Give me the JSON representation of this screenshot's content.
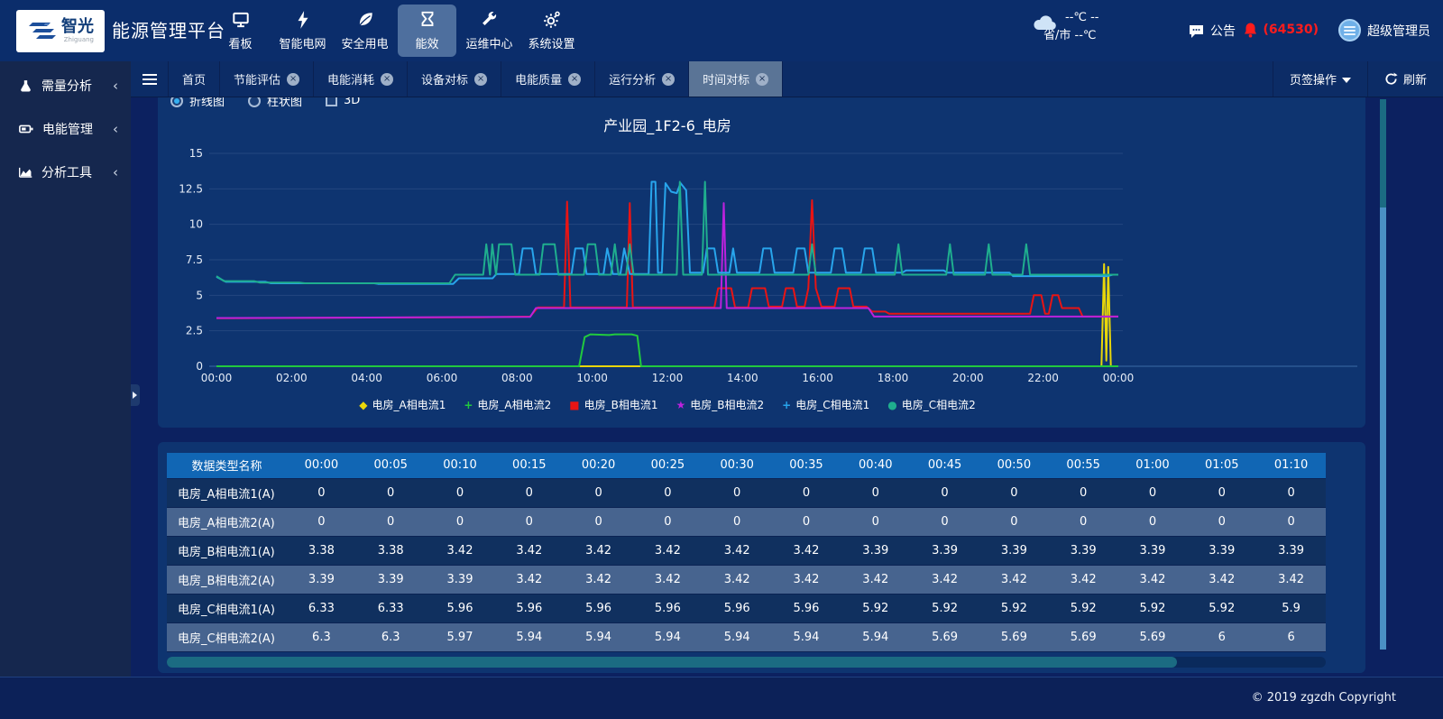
{
  "logo": {
    "brand": "智光",
    "sub": "Zhiguang"
  },
  "header": {
    "title": "能源管理平台",
    "nav": [
      {
        "label": "看板"
      },
      {
        "label": "智能电网"
      },
      {
        "label": "安全用电"
      },
      {
        "label": "能效"
      },
      {
        "label": "运维中心"
      },
      {
        "label": "系统设置"
      }
    ],
    "weather": {
      "line1": "--℃ --",
      "line2": "省/市 --℃"
    },
    "announcement": "公告",
    "alarm_count": "(64530)",
    "user": "超级管理员"
  },
  "sidebar": {
    "items": [
      {
        "label": "需量分析"
      },
      {
        "label": "电能管理"
      },
      {
        "label": "分析工具"
      }
    ]
  },
  "tabbar": {
    "tabs": [
      {
        "label": "首页"
      },
      {
        "label": "节能评估"
      },
      {
        "label": "电能消耗"
      },
      {
        "label": "设备对标"
      },
      {
        "label": "电能质量"
      },
      {
        "label": "运行分析"
      },
      {
        "label": "时间对标"
      }
    ],
    "tab_ops": "页签操作",
    "refresh": "刷新"
  },
  "chart_panel": {
    "controls": {
      "line": "折线图",
      "bar": "柱状图",
      "threed": "3D",
      "selected": "折线图"
    },
    "title": "产业园_1F2-6_电房"
  },
  "chart_data": {
    "type": "line",
    "title": "产业园_1F2-6_电房",
    "ylim": [
      0,
      15
    ],
    "yticks": [
      0,
      2.5,
      5,
      7.5,
      10,
      12.5,
      15
    ],
    "xticks": [
      "00:00",
      "02:00",
      "04:00",
      "06:00",
      "08:00",
      "10:00",
      "12:00",
      "14:00",
      "16:00",
      "18:00",
      "20:00",
      "22:00",
      "00:00"
    ],
    "x_unit": "hour",
    "grid": true,
    "legend_position": "bottom",
    "series": [
      {
        "name": "电房_A相电流1",
        "color": "#e8d60a",
        "marker": "diamond",
        "points": [
          [
            0,
            0
          ],
          [
            23.55,
            0
          ],
          [
            23.62,
            7.2
          ],
          [
            23.68,
            0.4
          ],
          [
            23.73,
            7.0
          ],
          [
            23.8,
            0
          ],
          [
            24,
            0
          ]
        ]
      },
      {
        "name": "电房_A相电流2",
        "color": "#21c93e",
        "marker": "plus",
        "points": [
          [
            0,
            0
          ],
          [
            9.65,
            0
          ],
          [
            9.8,
            2.05
          ],
          [
            9.95,
            2.25
          ],
          [
            10.45,
            2.2
          ],
          [
            10.6,
            2.25
          ],
          [
            11.05,
            2.25
          ],
          [
            11.2,
            2.15
          ],
          [
            11.3,
            0
          ],
          [
            24,
            0
          ]
        ]
      },
      {
        "name": "电房_B相电流1",
        "color": "#e81414",
        "marker": "square",
        "points": [
          [
            0,
            3.38
          ],
          [
            3,
            3.42
          ],
          [
            7,
            3.45
          ],
          [
            8.35,
            3.5
          ],
          [
            8.55,
            4.15
          ],
          [
            9.25,
            4.15
          ],
          [
            9.33,
            11.6
          ],
          [
            9.42,
            4.15
          ],
          [
            10.92,
            4.15
          ],
          [
            11.0,
            11.5
          ],
          [
            11.08,
            4.15
          ],
          [
            13.25,
            4.15
          ],
          [
            13.35,
            5.5
          ],
          [
            13.7,
            5.5
          ],
          [
            13.8,
            4.15
          ],
          [
            14.15,
            4.15
          ],
          [
            14.25,
            5.5
          ],
          [
            14.6,
            5.5
          ],
          [
            14.7,
            4.2
          ],
          [
            15.05,
            4.2
          ],
          [
            15.15,
            5.5
          ],
          [
            15.35,
            5.5
          ],
          [
            15.45,
            4.2
          ],
          [
            15.65,
            4.2
          ],
          [
            15.75,
            5.5
          ],
          [
            15.85,
            11.7
          ],
          [
            15.95,
            5.5
          ],
          [
            16.1,
            4.2
          ],
          [
            16.45,
            4.2
          ],
          [
            16.55,
            5.5
          ],
          [
            16.85,
            5.5
          ],
          [
            16.95,
            4.2
          ],
          [
            17.3,
            4.2
          ],
          [
            17.45,
            3.85
          ],
          [
            17.8,
            3.85
          ],
          [
            17.9,
            3.7
          ],
          [
            21.65,
            3.7
          ],
          [
            21.75,
            5.0
          ],
          [
            21.95,
            5.0
          ],
          [
            22.05,
            3.7
          ],
          [
            22.15,
            3.7
          ],
          [
            22.25,
            5.0
          ],
          [
            22.4,
            5.0
          ],
          [
            22.5,
            4.1
          ],
          [
            22.95,
            4.1
          ],
          [
            23.05,
            3.5
          ],
          [
            24,
            3.5
          ]
        ]
      },
      {
        "name": "电房_B相电流2",
        "color": "#bb22dd",
        "marker": "star",
        "points": [
          [
            0,
            3.4
          ],
          [
            4,
            3.43
          ],
          [
            8.35,
            3.48
          ],
          [
            8.5,
            4.1
          ],
          [
            13.42,
            4.1
          ],
          [
            13.5,
            11.5
          ],
          [
            13.58,
            4.1
          ],
          [
            17.35,
            4.1
          ],
          [
            17.5,
            3.5
          ],
          [
            24,
            3.5
          ]
        ]
      },
      {
        "name": "电房_C相电流1",
        "color": "#28a5ec",
        "marker": "cross",
        "points": [
          [
            0,
            6.3
          ],
          [
            0.25,
            5.95
          ],
          [
            1.3,
            5.95
          ],
          [
            1.45,
            5.85
          ],
          [
            4.2,
            5.85
          ],
          [
            4.3,
            5.8
          ],
          [
            6.3,
            5.8
          ],
          [
            6.45,
            6.2
          ],
          [
            7.35,
            6.2
          ],
          [
            7.45,
            6.5
          ],
          [
            8.05,
            6.5
          ],
          [
            8.15,
            8.3
          ],
          [
            8.4,
            8.3
          ],
          [
            8.5,
            6.5
          ],
          [
            9.45,
            6.5
          ],
          [
            9.55,
            8.3
          ],
          [
            9.75,
            8.3
          ],
          [
            9.85,
            6.5
          ],
          [
            10.3,
            6.5
          ],
          [
            10.4,
            8.3
          ],
          [
            10.55,
            6.5
          ],
          [
            10.75,
            6.5
          ],
          [
            10.85,
            8.3
          ],
          [
            11.0,
            6.5
          ],
          [
            11.5,
            6.5
          ],
          [
            11.58,
            13.0
          ],
          [
            11.68,
            13.0
          ],
          [
            11.75,
            6.6
          ],
          [
            11.85,
            6.6
          ],
          [
            11.95,
            12.9
          ],
          [
            12.1,
            12.3
          ],
          [
            12.25,
            12.2
          ],
          [
            12.35,
            12.9
          ],
          [
            12.5,
            12.4
          ],
          [
            12.6,
            6.6
          ],
          [
            12.95,
            6.6
          ],
          [
            13.05,
            8.3
          ],
          [
            13.25,
            8.3
          ],
          [
            13.35,
            6.6
          ],
          [
            13.65,
            6.6
          ],
          [
            13.75,
            8.3
          ],
          [
            13.85,
            6.6
          ],
          [
            14.45,
            6.6
          ],
          [
            14.55,
            8.3
          ],
          [
            14.75,
            8.3
          ],
          [
            14.85,
            6.6
          ],
          [
            15.35,
            6.6
          ],
          [
            15.45,
            8.3
          ],
          [
            15.65,
            8.3
          ],
          [
            15.75,
            6.6
          ],
          [
            16.35,
            6.6
          ],
          [
            16.45,
            8.3
          ],
          [
            16.65,
            8.3
          ],
          [
            16.75,
            6.6
          ],
          [
            17.15,
            6.6
          ],
          [
            17.25,
            8.3
          ],
          [
            17.45,
            8.3
          ],
          [
            17.55,
            6.6
          ],
          [
            18.25,
            6.6
          ],
          [
            18.35,
            6.75
          ],
          [
            19.35,
            6.75
          ],
          [
            19.45,
            6.6
          ],
          [
            21.1,
            6.6
          ],
          [
            21.2,
            6.35
          ],
          [
            23.7,
            6.35
          ],
          [
            23.85,
            6.45
          ],
          [
            24,
            6.45
          ]
        ]
      },
      {
        "name": "电房_C相电流2",
        "color": "#1fae8e",
        "marker": "circle",
        "points": [
          [
            0,
            6.35
          ],
          [
            0.2,
            6.0
          ],
          [
            1.0,
            6.0
          ],
          [
            1.15,
            5.9
          ],
          [
            2.2,
            5.9
          ],
          [
            2.35,
            5.85
          ],
          [
            6.2,
            5.85
          ],
          [
            6.35,
            6.45
          ],
          [
            7.1,
            6.45
          ],
          [
            7.18,
            8.6
          ],
          [
            7.28,
            6.45
          ],
          [
            7.34,
            8.6
          ],
          [
            7.44,
            6.45
          ],
          [
            7.52,
            8.6
          ],
          [
            7.85,
            8.6
          ],
          [
            7.95,
            6.45
          ],
          [
            8.6,
            6.45
          ],
          [
            8.7,
            8.6
          ],
          [
            9.0,
            8.6
          ],
          [
            9.1,
            6.45
          ],
          [
            9.78,
            6.45
          ],
          [
            9.88,
            8.6
          ],
          [
            10.08,
            8.6
          ],
          [
            10.18,
            6.45
          ],
          [
            10.5,
            6.45
          ],
          [
            10.6,
            8.6
          ],
          [
            10.7,
            6.45
          ],
          [
            10.9,
            6.45
          ],
          [
            11.0,
            8.6
          ],
          [
            11.1,
            6.45
          ],
          [
            12.25,
            6.45
          ],
          [
            12.33,
            13.0
          ],
          [
            12.42,
            6.45
          ],
          [
            12.92,
            6.45
          ],
          [
            13.0,
            13.0
          ],
          [
            13.08,
            6.45
          ],
          [
            15.75,
            6.45
          ],
          [
            15.85,
            8.6
          ],
          [
            15.95,
            6.45
          ],
          [
            18.05,
            6.45
          ],
          [
            18.15,
            8.6
          ],
          [
            18.25,
            6.45
          ],
          [
            19.42,
            6.45
          ],
          [
            19.52,
            8.6
          ],
          [
            19.62,
            6.45
          ],
          [
            20.45,
            6.45
          ],
          [
            20.55,
            8.6
          ],
          [
            20.65,
            6.45
          ],
          [
            21.45,
            6.45
          ],
          [
            21.55,
            8.6
          ],
          [
            21.65,
            6.45
          ],
          [
            24,
            6.45
          ]
        ]
      }
    ]
  },
  "table": {
    "headers": [
      "数据类型名称",
      "00:00",
      "00:05",
      "00:10",
      "00:15",
      "00:20",
      "00:25",
      "00:30",
      "00:35",
      "00:40",
      "00:45",
      "00:50",
      "00:55",
      "01:00",
      "01:05",
      "01:10"
    ],
    "rows": [
      {
        "name": "电房_A相电流1(A)",
        "values": [
          0,
          0,
          0,
          0,
          0,
          0,
          0,
          0,
          0,
          0,
          0,
          0,
          0,
          0,
          0
        ]
      },
      {
        "name": "电房_A相电流2(A)",
        "values": [
          0,
          0,
          0,
          0,
          0,
          0,
          0,
          0,
          0,
          0,
          0,
          0,
          0,
          0,
          0
        ]
      },
      {
        "name": "电房_B相电流1(A)",
        "values": [
          3.38,
          3.38,
          3.42,
          3.42,
          3.42,
          3.42,
          3.42,
          3.42,
          3.39,
          3.39,
          3.39,
          3.39,
          3.39,
          3.39,
          3.39
        ]
      },
      {
        "name": "电房_B相电流2(A)",
        "values": [
          3.39,
          3.39,
          3.39,
          3.42,
          3.42,
          3.42,
          3.42,
          3.42,
          3.42,
          3.42,
          3.42,
          3.42,
          3.42,
          3.42,
          3.42
        ]
      },
      {
        "name": "电房_C相电流1(A)",
        "values": [
          6.33,
          6.33,
          5.96,
          5.96,
          5.96,
          5.96,
          5.96,
          5.96,
          5.92,
          5.92,
          5.92,
          5.92,
          5.92,
          5.92,
          5.9
        ]
      },
      {
        "name": "电房_C相电流2(A)",
        "values": [
          6.3,
          6.3,
          5.97,
          5.94,
          5.94,
          5.94,
          5.94,
          5.94,
          5.94,
          5.69,
          5.69,
          5.69,
          5.69,
          6,
          6
        ]
      }
    ]
  },
  "footer": {
    "copyright": "© 2019 zgzdh Copyright"
  },
  "colors": {
    "header_bg": "#0b2d6b",
    "page_bg": "#0c2160",
    "panel_bg": "#0e3470",
    "table_header_bg": "#1166b4",
    "row_dark": "#10305f",
    "row_light": "#47648f",
    "active_nav_bg": "#4e6f9e",
    "active_tab_bg": "#5a7496",
    "accent_red": "#ff1c1c"
  }
}
